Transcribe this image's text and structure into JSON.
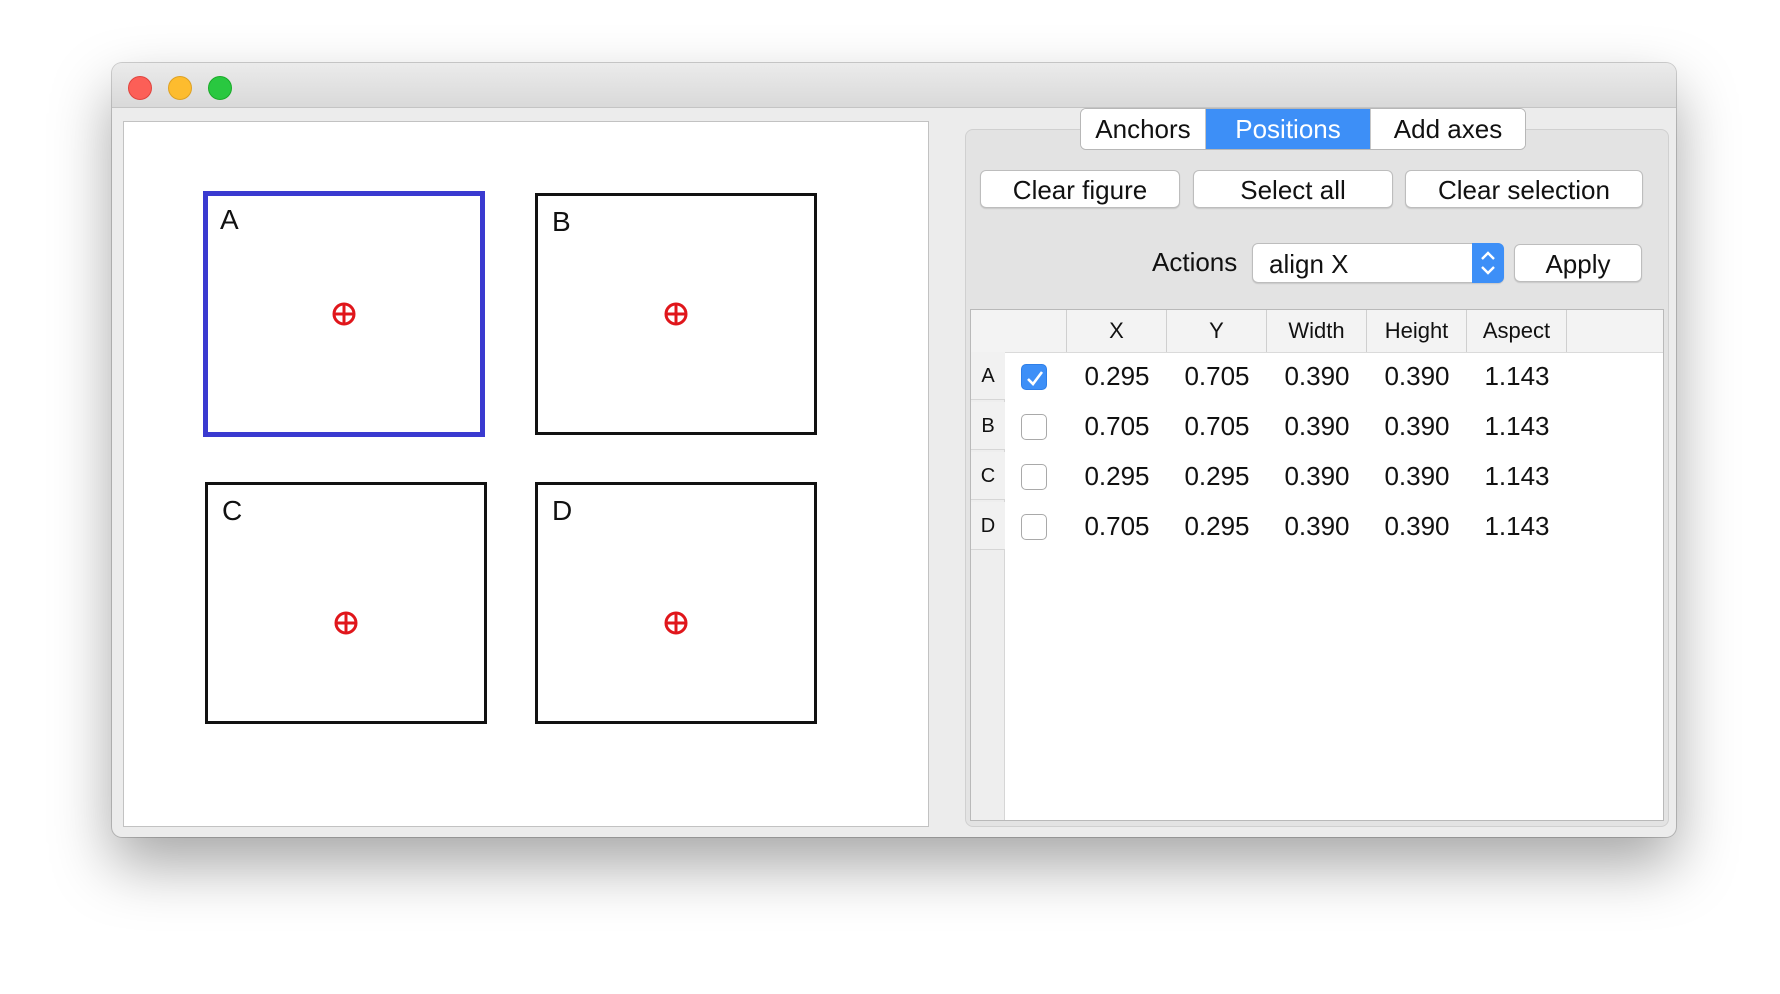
{
  "canvas": {
    "axes": [
      {
        "label": "A",
        "selected": true
      },
      {
        "label": "B",
        "selected": false
      },
      {
        "label": "C",
        "selected": false
      },
      {
        "label": "D",
        "selected": false
      }
    ],
    "marker_icon": "crosshair-circle-icon",
    "marker_color": "#e0161b",
    "selection_color": "#3a3ad0"
  },
  "tabs": [
    {
      "label": "Anchors",
      "active": false
    },
    {
      "label": "Positions",
      "active": true
    },
    {
      "label": "Add axes",
      "active": false
    }
  ],
  "toolbar": {
    "clear_figure": "Clear figure",
    "select_all": "Select all",
    "clear_selection": "Clear selection"
  },
  "actions": {
    "label": "Actions",
    "selected": "align X",
    "apply": "Apply"
  },
  "table": {
    "columns": [
      "X",
      "Y",
      "Width",
      "Height",
      "Aspect"
    ],
    "rows": [
      {
        "name": "A",
        "checked": true,
        "values": [
          "0.295",
          "0.705",
          "0.390",
          "0.390",
          "1.143"
        ]
      },
      {
        "name": "B",
        "checked": false,
        "values": [
          "0.705",
          "0.705",
          "0.390",
          "0.390",
          "1.143"
        ]
      },
      {
        "name": "C",
        "checked": false,
        "values": [
          "0.295",
          "0.295",
          "0.390",
          "0.390",
          "1.143"
        ]
      },
      {
        "name": "D",
        "checked": false,
        "values": [
          "0.705",
          "0.295",
          "0.390",
          "0.390",
          "1.143"
        ]
      }
    ]
  },
  "colors": {
    "accent": "#3d8ff7"
  }
}
